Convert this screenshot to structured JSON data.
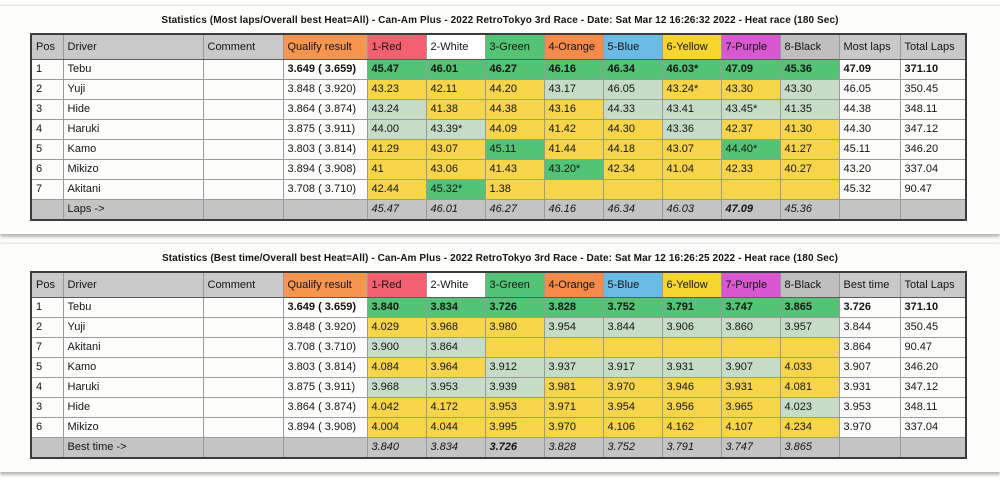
{
  "colors": {
    "header_gray": "#c9c9c9",
    "qualify_orange": "#f6954f",
    "heat_red": "#f3606f",
    "heat_green": "#53c475",
    "heat_orange": "#f58a4b",
    "heat_blue": "#6abce7",
    "heat_yellow": "#f6d62e",
    "heat_purple": "#d958d2",
    "heat_black": "#bfbfbf",
    "cell_best_green": "#53c475",
    "cell_pale_green": "#c7dcc6",
    "cell_yellow": "#f6d54a",
    "summary_gray": "#c4c4c4"
  },
  "tables": [
    {
      "title": "Statistics (Most laps/Overall best Heat=All) - Can-Am Plus - 2022 RetroTokyo 3rd Race - Date: Sat Mar 12 16:26:32 2022 - Heat race (180 Sec)",
      "columns": [
        "Pos",
        "Driver",
        "Comment",
        "Qualify result",
        "1-Red",
        "2-White",
        "3-Green",
        "4-Orange",
        "5-Blue",
        "6-Yellow",
        "7-Purple",
        "8-Black",
        "Most laps",
        "Total Laps"
      ],
      "result_header_bold": false,
      "rows": [
        {
          "pos": "1",
          "driver": "Tebu",
          "comment": "",
          "qualify": "3.649 ( 3.659)",
          "best": true,
          "heats": [
            [
              "45.47",
              "g"
            ],
            [
              "46.01",
              "g"
            ],
            [
              "46.27",
              "g"
            ],
            [
              "46.16",
              "g"
            ],
            [
              "46.34",
              "g"
            ],
            [
              "46.03*",
              "g"
            ],
            [
              "47.09",
              "g"
            ],
            [
              "45.36",
              "g"
            ]
          ],
          "result": "47.09",
          "total": "371.10"
        },
        {
          "pos": "2",
          "driver": "Yuji",
          "comment": "",
          "qualify": "3.848 ( 3.920)",
          "best": false,
          "heats": [
            [
              "43.23",
              "y"
            ],
            [
              "42.11",
              "y"
            ],
            [
              "44.20",
              "y"
            ],
            [
              "43.17",
              "l"
            ],
            [
              "46.05",
              "l"
            ],
            [
              "43.24*",
              "y"
            ],
            [
              "43.30",
              "y"
            ],
            [
              "43.30",
              "l"
            ]
          ],
          "result": "46.05",
          "total": "350.45"
        },
        {
          "pos": "3",
          "driver": "Hide",
          "comment": "",
          "qualify": "3.864 ( 3.874)",
          "best": false,
          "heats": [
            [
              "43.24",
              "l"
            ],
            [
              "41.38",
              "y"
            ],
            [
              "44.38",
              "y"
            ],
            [
              "43.16",
              "y"
            ],
            [
              "44.33",
              "l"
            ],
            [
              "43.41",
              "l"
            ],
            [
              "43.45*",
              "l"
            ],
            [
              "41.35",
              "l"
            ]
          ],
          "result": "44.38",
          "total": "348.11"
        },
        {
          "pos": "4",
          "driver": "Haruki",
          "comment": "",
          "qualify": "3.875 ( 3.911)",
          "best": false,
          "heats": [
            [
              "44.00",
              "l"
            ],
            [
              "43.39*",
              "l"
            ],
            [
              "44.09",
              "y"
            ],
            [
              "41.42",
              "y"
            ],
            [
              "44.30",
              "y"
            ],
            [
              "43.36",
              "l"
            ],
            [
              "42.37",
              "y"
            ],
            [
              "41.30",
              "y"
            ]
          ],
          "result": "44.30",
          "total": "347.12"
        },
        {
          "pos": "5",
          "driver": "Kamo",
          "comment": "",
          "qualify": "3.803 ( 3.814)",
          "best": false,
          "heats": [
            [
              "41.29",
              "y"
            ],
            [
              "43.07",
              "y"
            ],
            [
              "45.11",
              "g"
            ],
            [
              "41.44",
              "y"
            ],
            [
              "44.18",
              "y"
            ],
            [
              "43.07",
              "y"
            ],
            [
              "44.40*",
              "g"
            ],
            [
              "41.27",
              "y"
            ]
          ],
          "result": "45.11",
          "total": "346.20"
        },
        {
          "pos": "6",
          "driver": "Mikizo",
          "comment": "",
          "qualify": "3.894 ( 3.908)",
          "best": false,
          "heats": [
            [
              "41",
              "y"
            ],
            [
              "43.06",
              "y"
            ],
            [
              "41.43",
              "y"
            ],
            [
              "43.20*",
              "g"
            ],
            [
              "42.34",
              "y"
            ],
            [
              "41.04",
              "y"
            ],
            [
              "42.33",
              "y"
            ],
            [
              "40.27",
              "y"
            ]
          ],
          "result": "43.20",
          "total": "337.04"
        },
        {
          "pos": "7",
          "driver": "Akitani",
          "comment": "",
          "qualify": "3.708 ( 3.710)",
          "best": false,
          "heats": [
            [
              "42.44",
              "y"
            ],
            [
              "45.32*",
              "g"
            ],
            [
              "1.38",
              "y"
            ],
            [
              "",
              "y"
            ],
            [
              "",
              "y"
            ],
            [
              "",
              "y"
            ],
            [
              "",
              "y"
            ],
            [
              "",
              "y"
            ]
          ],
          "result": "45.32",
          "total": "90.47"
        }
      ],
      "summary": {
        "label": "Laps ->",
        "values": [
          "45.47",
          "46.01",
          "46.27",
          "46.16",
          "46.34",
          "46.03",
          "47.09",
          "45.36"
        ],
        "bold_index": 6
      }
    },
    {
      "title": "Statistics (Best time/Overall best Heat=All) - Can-Am Plus - 2022 RetroTokyo 3rd Race - Date: Sat Mar 12 16:26:25 2022 - Heat race (180 Sec)",
      "columns": [
        "Pos",
        "Driver",
        "Comment",
        "Qualify result",
        "1-Red",
        "2-White",
        "3-Green",
        "4-Orange",
        "5-Blue",
        "6-Yellow",
        "7-Purple",
        "8-Black",
        "Best time",
        "Total Laps"
      ],
      "result_header_bold": true,
      "rows": [
        {
          "pos": "1",
          "driver": "Tebu",
          "comment": "",
          "qualify": "3.649 ( 3.659)",
          "best": true,
          "heats": [
            [
              "3.840",
              "g"
            ],
            [
              "3.834",
              "g"
            ],
            [
              "3.726",
              "g"
            ],
            [
              "3.828",
              "g"
            ],
            [
              "3.752",
              "g"
            ],
            [
              "3.791",
              "g"
            ],
            [
              "3.747",
              "g"
            ],
            [
              "3.865",
              "g"
            ]
          ],
          "result": "3.726",
          "total": "371.10"
        },
        {
          "pos": "2",
          "driver": "Yuji",
          "comment": "",
          "qualify": "3.848 ( 3.920)",
          "best": false,
          "heats": [
            [
              "4.029",
              "y"
            ],
            [
              "3.968",
              "y"
            ],
            [
              "3.980",
              "y"
            ],
            [
              "3.954",
              "l"
            ],
            [
              "3.844",
              "l"
            ],
            [
              "3.906",
              "l"
            ],
            [
              "3.860",
              "l"
            ],
            [
              "3.957",
              "l"
            ]
          ],
          "result": "3.844",
          "total": "350.45"
        },
        {
          "pos": "7",
          "driver": "Akitani",
          "comment": "",
          "qualify": "3.708 ( 3.710)",
          "best": false,
          "heats": [
            [
              "3.900",
              "l"
            ],
            [
              "3.864",
              "l"
            ],
            [
              "",
              "y"
            ],
            [
              "",
              "y"
            ],
            [
              "",
              "y"
            ],
            [
              "",
              "y"
            ],
            [
              "",
              "y"
            ],
            [
              "",
              "y"
            ]
          ],
          "result": "3.864",
          "total": "90.47"
        },
        {
          "pos": "5",
          "driver": "Kamo",
          "comment": "",
          "qualify": "3.803 ( 3.814)",
          "best": false,
          "heats": [
            [
              "4.084",
              "y"
            ],
            [
              "3.964",
              "y"
            ],
            [
              "3.912",
              "l"
            ],
            [
              "3.937",
              "l"
            ],
            [
              "3.917",
              "l"
            ],
            [
              "3.931",
              "l"
            ],
            [
              "3.907",
              "l"
            ],
            [
              "4.033",
              "y"
            ]
          ],
          "result": "3.907",
          "total": "346.20"
        },
        {
          "pos": "4",
          "driver": "Haruki",
          "comment": "",
          "qualify": "3.875 ( 3.911)",
          "best": false,
          "heats": [
            [
              "3.968",
              "l"
            ],
            [
              "3.953",
              "l"
            ],
            [
              "3.939",
              "l"
            ],
            [
              "3.981",
              "y"
            ],
            [
              "3.970",
              "y"
            ],
            [
              "3.946",
              "y"
            ],
            [
              "3.931",
              "y"
            ],
            [
              "4.081",
              "y"
            ]
          ],
          "result": "3.931",
          "total": "347.12"
        },
        {
          "pos": "3",
          "driver": "Hide",
          "comment": "",
          "qualify": "3.864 ( 3.874)",
          "best": false,
          "heats": [
            [
              "4.042",
              "y"
            ],
            [
              "4.172",
              "y"
            ],
            [
              "3.953",
              "y"
            ],
            [
              "3.971",
              "y"
            ],
            [
              "3.954",
              "y"
            ],
            [
              "3.956",
              "y"
            ],
            [
              "3.965",
              "y"
            ],
            [
              "4.023",
              "l"
            ]
          ],
          "result": "3.953",
          "total": "348.11"
        },
        {
          "pos": "6",
          "driver": "Mikizo",
          "comment": "",
          "qualify": "3.894 ( 3.908)",
          "best": false,
          "heats": [
            [
              "4.004",
              "y"
            ],
            [
              "4.044",
              "y"
            ],
            [
              "3.995",
              "y"
            ],
            [
              "3.970",
              "y"
            ],
            [
              "4.106",
              "y"
            ],
            [
              "4.162",
              "y"
            ],
            [
              "4.107",
              "y"
            ],
            [
              "4.234",
              "y"
            ]
          ],
          "result": "3.970",
          "total": "337.04"
        }
      ],
      "summary": {
        "label": "Best time ->",
        "values": [
          "3.840",
          "3.834",
          "3.726",
          "3.828",
          "3.752",
          "3.791",
          "3.747",
          "3.865"
        ],
        "bold_index": 2
      }
    }
  ]
}
